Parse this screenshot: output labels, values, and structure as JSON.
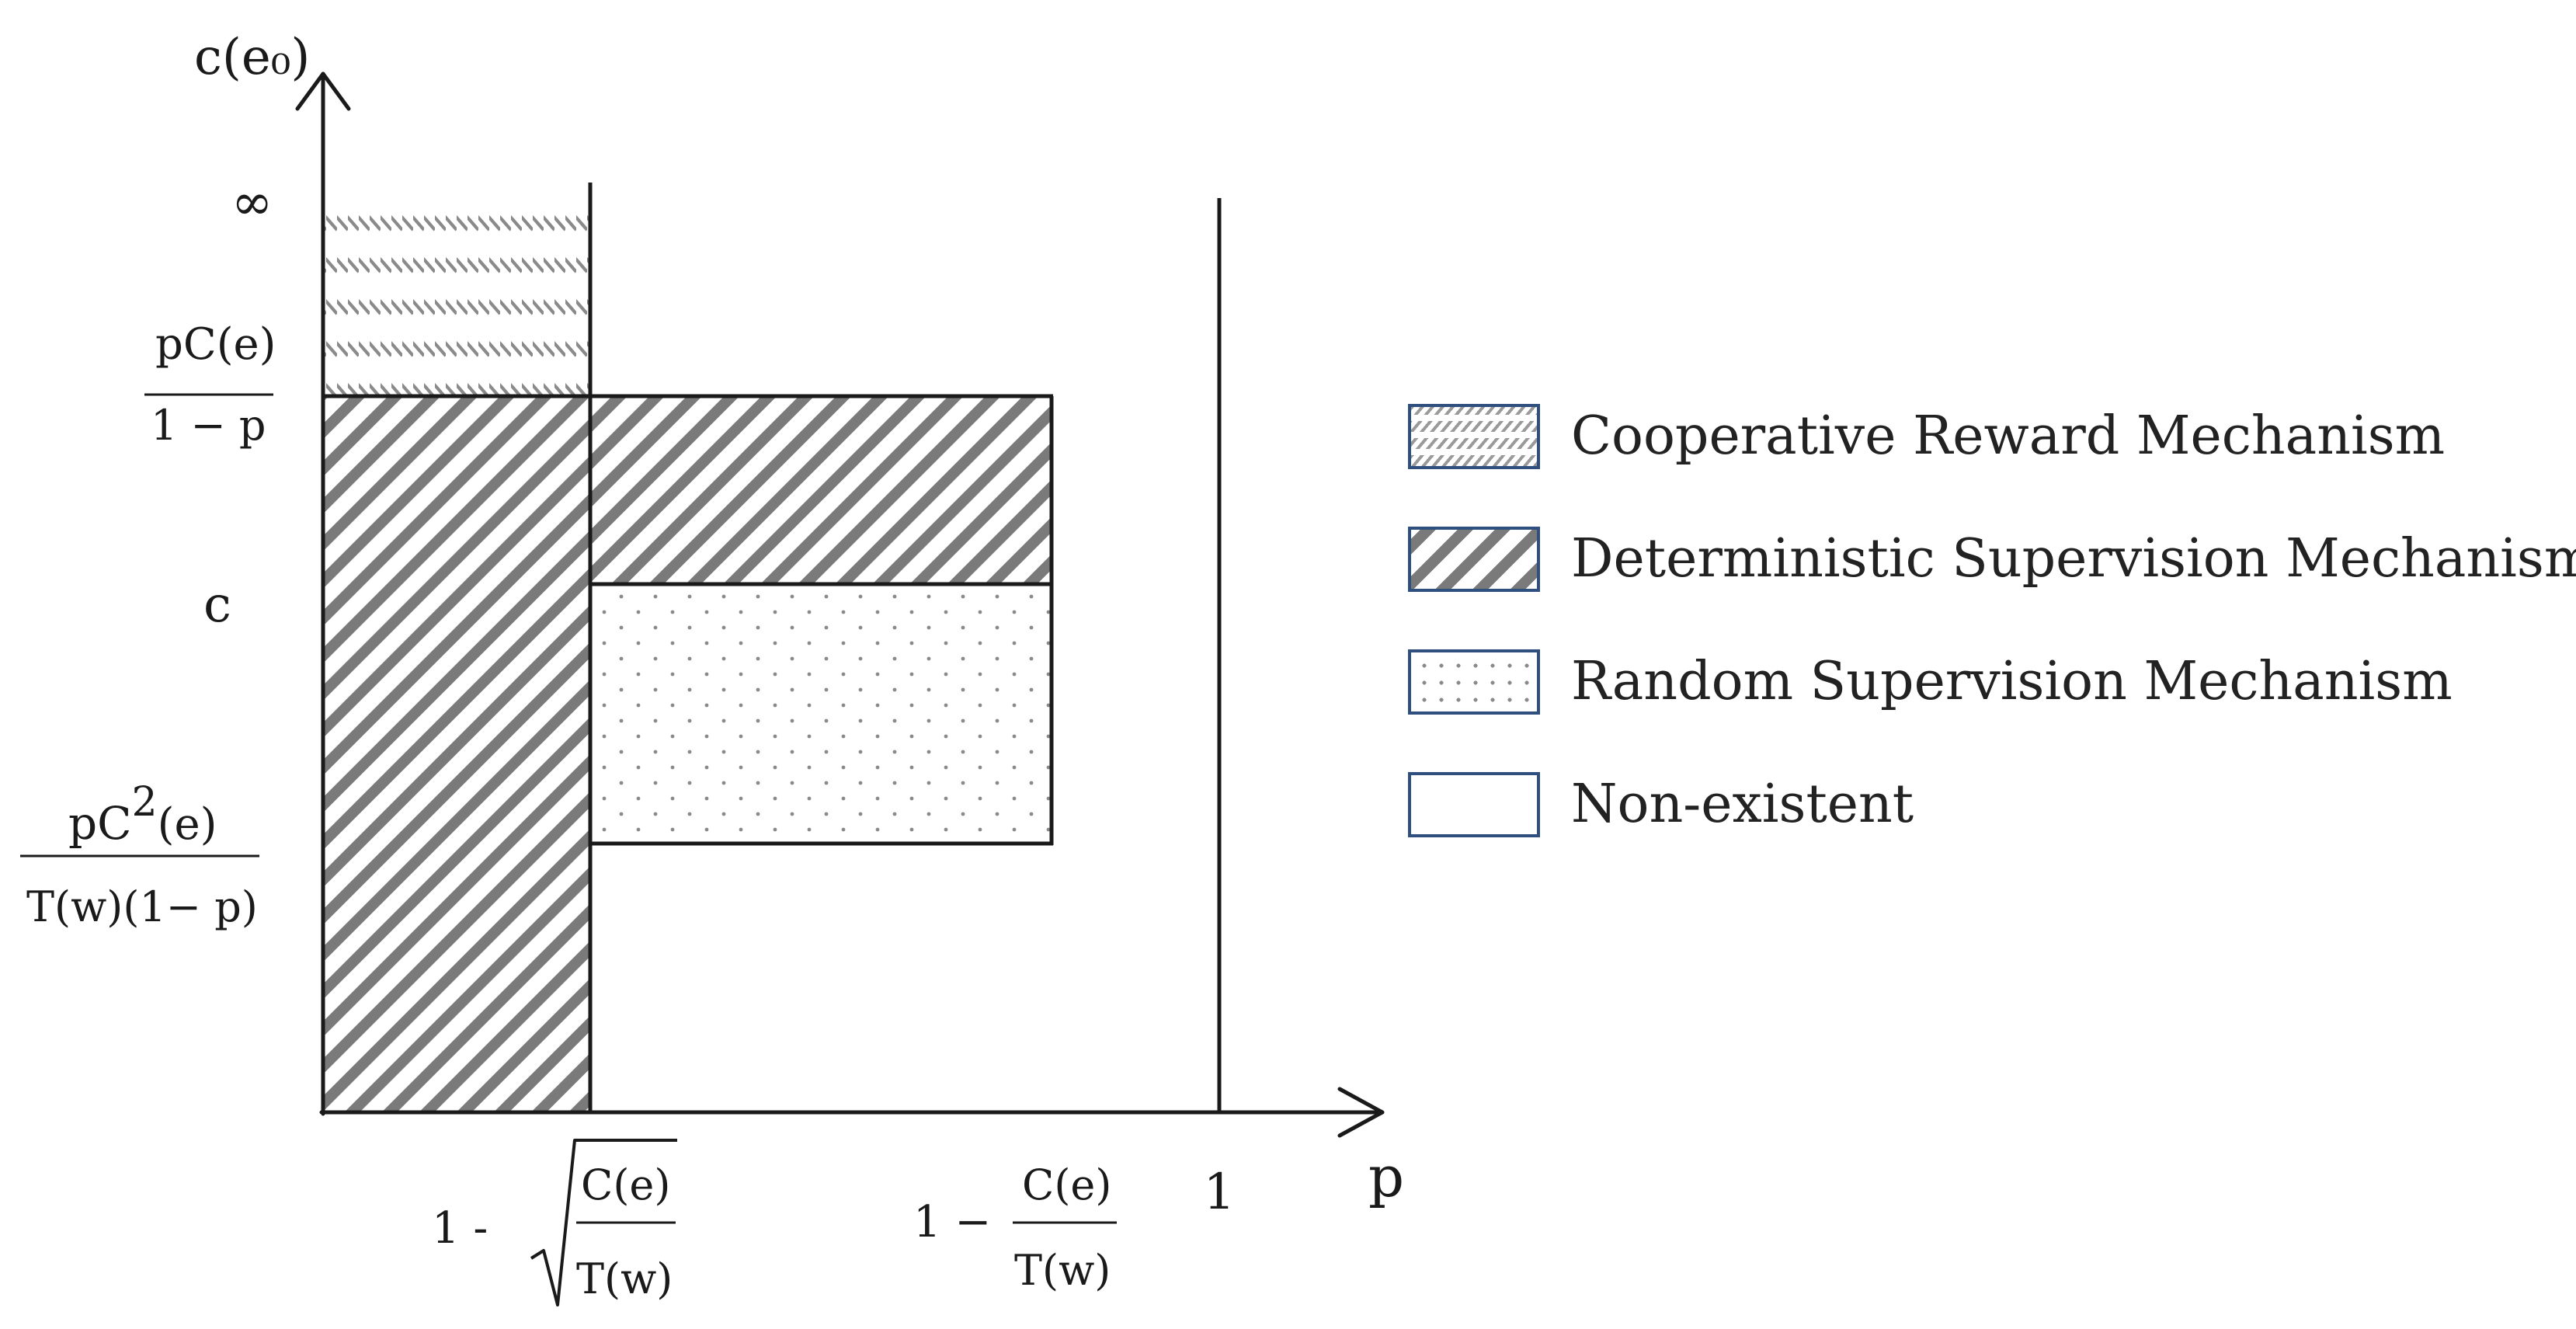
{
  "axes": {
    "y_label": "c(e₀)",
    "x_label": "p",
    "y_ticks": {
      "infinity": "∞",
      "ratio_numerator": "pC(e)",
      "ratio_denominator": "1 − p",
      "c": "c",
      "lower_numerator_base": "pC",
      "lower_numerator_exponent": "2",
      "lower_numerator_tail": "(e)",
      "lower_denominator": "T(w)(1− p)"
    },
    "x_ticks": {
      "sqrt_prefix": "1 -",
      "sqrt_numerator": "C(e)",
      "sqrt_denominator": "T(w)",
      "ratio_prefix": "1 −",
      "ratio_numerator": "C(e)",
      "ratio_denominator": "T(w)",
      "one": "1"
    }
  },
  "regions": [
    {
      "id": "cooperative",
      "pattern": "cooperative-hatch"
    },
    {
      "id": "deterministic-left",
      "pattern": "deterministic-hatch"
    },
    {
      "id": "deterministic-right",
      "pattern": "deterministic-hatch"
    },
    {
      "id": "random",
      "pattern": "random-dots"
    }
  ],
  "legend": [
    {
      "label": "Cooperative Reward Mechanism",
      "pattern": "cooperative-hatch"
    },
    {
      "label": "Deterministic Supervision Mechanism",
      "pattern": "deterministic-hatch"
    },
    {
      "label": "Random Supervision Mechanism",
      "pattern": "random-dots"
    },
    {
      "label": "Non-existent",
      "pattern": "none"
    }
  ],
  "colors": {
    "line": "#1a1a1a",
    "hatch": "#7a7a7a",
    "legend_border": "#2f4f7f"
  }
}
